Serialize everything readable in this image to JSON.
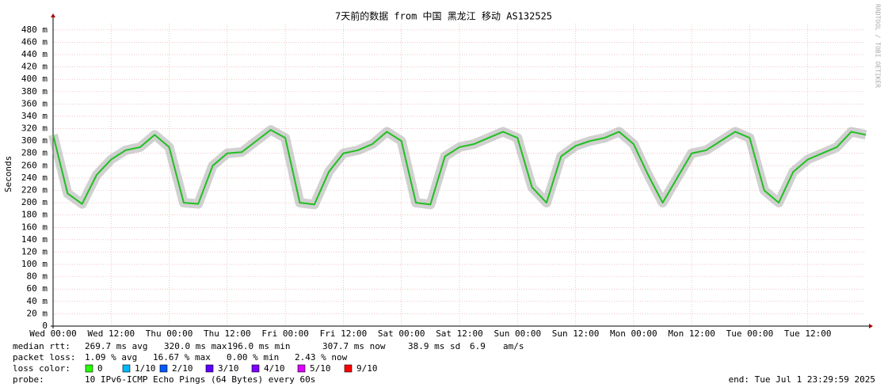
{
  "chart_data": {
    "type": "line",
    "title": "7天前的数据 from 中国 黑龙江 移动 AS132525",
    "y_label": "Seconds",
    "x": [
      0,
      3,
      6,
      9,
      12,
      15,
      18,
      21,
      24,
      27,
      30,
      33,
      36,
      39,
      42,
      45,
      48,
      51,
      54,
      57,
      60,
      63,
      66,
      69,
      72,
      75,
      78,
      81,
      84,
      87,
      90,
      93,
      96,
      99,
      102,
      105,
      108,
      111,
      114,
      117,
      120,
      123,
      126,
      129,
      132,
      135,
      138,
      141,
      144,
      147,
      150,
      153,
      156,
      159,
      162,
      165,
      168
    ],
    "xlim": [
      0,
      168
    ],
    "xticks": [
      {
        "value": 0,
        "label": "Wed 00:00"
      },
      {
        "value": 12,
        "label": "Wed 12:00"
      },
      {
        "value": 24,
        "label": "Thu 00:00"
      },
      {
        "value": 36,
        "label": "Thu 12:00"
      },
      {
        "value": 48,
        "label": "Fri 00:00"
      },
      {
        "value": 60,
        "label": "Fri 12:00"
      },
      {
        "value": 72,
        "label": "Sat 00:00"
      },
      {
        "value": 84,
        "label": "Sat 12:00"
      },
      {
        "value": 96,
        "label": "Sun 00:00"
      },
      {
        "value": 108,
        "label": "Sun 12:00"
      },
      {
        "value": 120,
        "label": "Mon 00:00"
      },
      {
        "value": 132,
        "label": "Mon 12:00"
      },
      {
        "value": 144,
        "label": "Tue 00:00"
      },
      {
        "value": 156,
        "label": "Tue 12:00"
      }
    ],
    "ylim": [
      0,
      490
    ],
    "yticks": [
      0,
      {
        "value": 20,
        "label": "20 m"
      },
      {
        "value": 40,
        "label": "40 m"
      },
      {
        "value": 60,
        "label": "60 m"
      },
      {
        "value": 80,
        "label": "80 m"
      },
      {
        "value": 100,
        "label": "100 m"
      },
      {
        "value": 120,
        "label": "120 m"
      },
      {
        "value": 140,
        "label": "140 m"
      },
      {
        "value": 160,
        "label": "160 m"
      },
      {
        "value": 180,
        "label": "180 m"
      },
      {
        "value": 200,
        "label": "200 m"
      },
      {
        "value": 220,
        "label": "220 m"
      },
      {
        "value": 240,
        "label": "240 m"
      },
      {
        "value": 260,
        "label": "260 m"
      },
      {
        "value": 280,
        "label": "280 m"
      },
      {
        "value": 300,
        "label": "300 m"
      },
      {
        "value": 320,
        "label": "320 m"
      },
      {
        "value": 340,
        "label": "340 m"
      },
      {
        "value": 360,
        "label": "360 m"
      },
      {
        "value": 380,
        "label": "380 m"
      },
      {
        "value": 400,
        "label": "400 m"
      },
      {
        "value": 420,
        "label": "420 m"
      },
      {
        "value": 440,
        "label": "440 m"
      },
      {
        "value": 460,
        "label": "460 m"
      },
      {
        "value": 480,
        "label": "480 m"
      }
    ],
    "grid": true,
    "series": [
      {
        "color": "#20c020",
        "values": [
          310,
          215,
          198,
          245,
          270,
          285,
          290,
          310,
          290,
          200,
          198,
          260,
          280,
          282,
          300,
          318,
          305,
          200,
          197,
          250,
          280,
          285,
          295,
          315,
          300,
          200,
          197,
          275,
          290,
          295,
          305,
          315,
          305,
          225,
          200,
          275,
          292,
          300,
          305,
          315,
          295,
          245,
          200,
          240,
          280,
          285,
          300,
          315,
          305,
          220,
          200,
          250,
          270,
          280,
          290,
          315,
          310
        ]
      }
    ]
  },
  "legend": {
    "median_rtt": {
      "label": "median rtt:",
      "items": [
        "269.7 ms avg",
        "320.0 ms max",
        "196.0 ms min",
        "307.7 ms now",
        "38.9 ms sd",
        "6.9",
        "am/s"
      ]
    },
    "packet_loss": {
      "label": "packet loss:",
      "items": [
        "1.09 % avg",
        "16.67 % max",
        "0.00 % min",
        "2.43 % now"
      ]
    },
    "loss_color": {
      "label": "loss color:",
      "items": [
        {
          "label": "0",
          "color": "#26ff00"
        },
        {
          "label": "1/10",
          "color": "#00b8ff"
        },
        {
          "label": "2/10",
          "color": "#0059ff"
        },
        {
          "label": "3/10",
          "color": "#5e00ff"
        },
        {
          "label": "4/10",
          "color": "#7e00ff"
        },
        {
          "label": "5/10",
          "color": "#dd00ff"
        },
        {
          "label": "9/10",
          "color": "#ff0000"
        }
      ]
    },
    "probe": {
      "label": "probe:",
      "text": "10 IPv6-ICMP Echo Pings (64 Bytes) every 60s"
    },
    "end": "end: Tue Jul  1 23:29:59 2025"
  },
  "watermark": "RRDTOOL / TOBI OETIKER"
}
